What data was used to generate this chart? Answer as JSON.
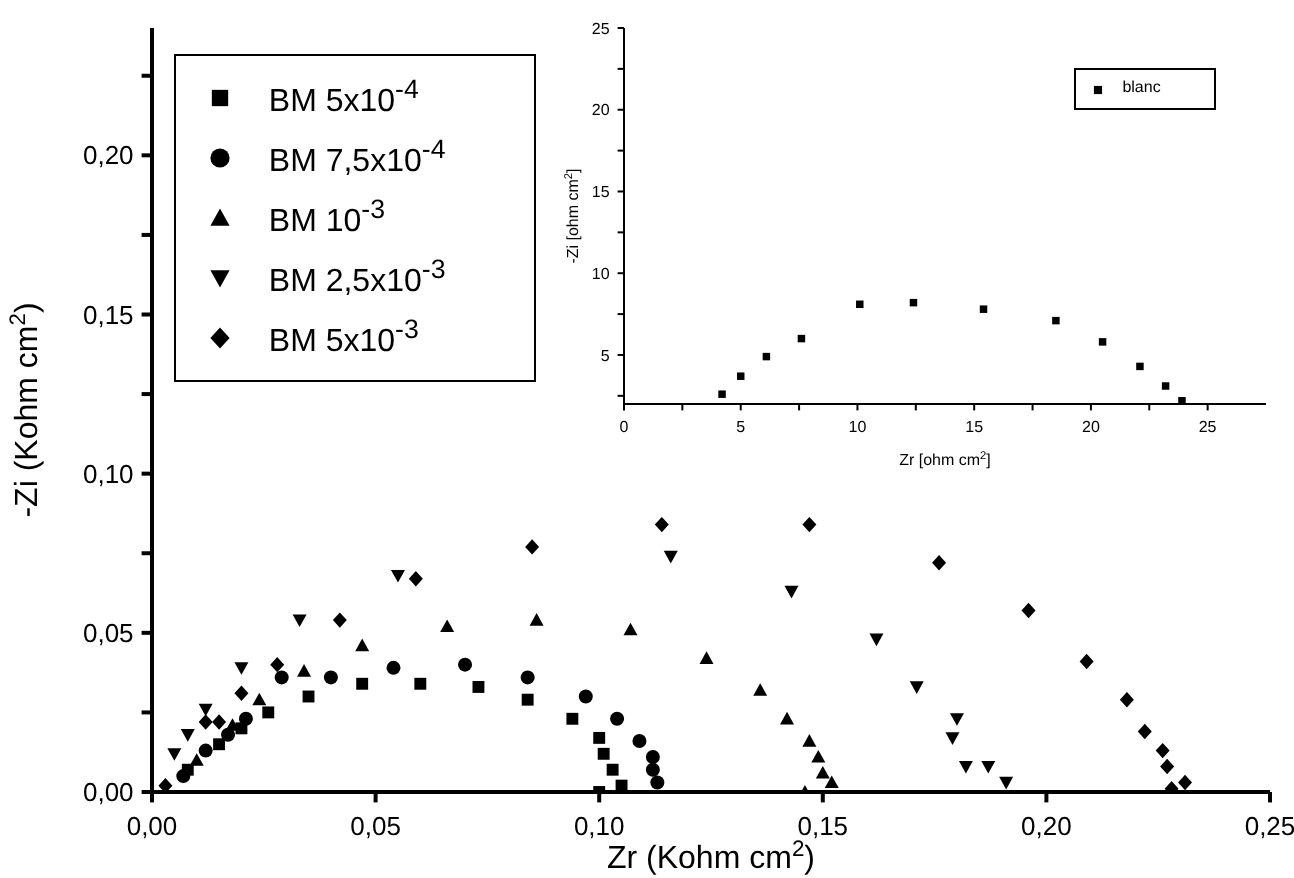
{
  "chart_data": [
    {
      "type": "scatter",
      "xlabel": "Zr (Kohm cm$^{2}$)",
      "ylabel": "-Zi (Kohm cm$^{2}$)",
      "xlim": [
        0,
        0.25
      ],
      "xticks": [
        {
          "value": 0,
          "label": "0,00"
        },
        {
          "value": 0.05,
          "label": "0,05"
        },
        {
          "value": 0.1,
          "label": "0,10"
        },
        {
          "value": 0.15,
          "label": "0,15"
        },
        {
          "value": 0.2,
          "label": "0,20"
        },
        {
          "value": 0.25,
          "label": "0,25"
        }
      ],
      "ylim": [
        0,
        0.24
      ],
      "yticks": [
        {
          "value": 0,
          "label": "0,00"
        },
        {
          "value": 0.025,
          "label": null
        },
        {
          "value": 0.05,
          "label": "0,05"
        },
        {
          "value": 0.075,
          "label": null
        },
        {
          "value": 0.1,
          "label": "0,10"
        },
        {
          "value": 0.125,
          "label": null
        },
        {
          "value": 0.15,
          "label": "0,15"
        },
        {
          "value": 0.175,
          "label": null
        },
        {
          "value": 0.2,
          "label": "0,20"
        },
        {
          "value": 0.225,
          "label": null
        }
      ],
      "legend": "top left",
      "series": [
        {
          "name": "BM 5x10$^{-4}$",
          "color": "#000000",
          "marker": "square",
          "x": [
            0.008,
            0.011,
            0.015,
            0.02,
            0.026,
            0.035,
            0.047,
            0.06,
            0.073,
            0.084,
            0.094,
            0.1,
            0.101,
            0.103,
            0.105,
            0.1
          ],
          "values": [
            0.007,
            null,
            0.015,
            0.02,
            0.025,
            0.03,
            0.034,
            0.034,
            0.033,
            0.029,
            0.023,
            0.017,
            0.012,
            0.007,
            0.002,
            0
          ]
        },
        {
          "name": "BM 7,5x10$^{-4}$",
          "color": "#000000",
          "marker": "circle",
          "x": [
            0.007,
            0.012,
            0.017,
            0.021,
            0.029,
            0.04,
            0.054,
            0.07,
            0.084,
            0.097,
            0.104,
            0.109,
            0.112,
            0.112,
            0.113
          ],
          "values": [
            0.005,
            0.013,
            0.018,
            0.023,
            0.036,
            0.036,
            0.039,
            0.04,
            0.036,
            0.03,
            0.023,
            0.016,
            0.011,
            0.007,
            0.003
          ]
        },
        {
          "name": "BM 10$^{-3}$",
          "color": "#000000",
          "marker": "triangle",
          "x": [
            0.01,
            0.018,
            0.024,
            0.034,
            0.047,
            0.066,
            0.086,
            0.107,
            0.124,
            0.136,
            0.142,
            0.147,
            0.149,
            0.15,
            0.152,
            0.146
          ],
          "values": [
            0.01,
            0.021,
            0.029,
            0.038,
            0.046,
            0.052,
            0.054,
            0.051,
            0.042,
            0.032,
            0.023,
            0.016,
            0.011,
            0.006,
            0.003,
            0
          ]
        },
        {
          "name": "BM 2,5x10$^{-3}$",
          "color": "#000000",
          "marker": "triangle_down",
          "x": [
            0.005,
            0.008,
            0.012,
            0.02,
            0.033,
            0.055,
            0.116,
            0.143,
            0.162,
            0.171,
            0.18,
            0.179,
            0.182,
            0.187,
            0.191
          ],
          "values": [
            0.012,
            0.018,
            0.026,
            0.039,
            0.054,
            0.068,
            0.074,
            0.063,
            0.048,
            0.033,
            0.023,
            0.017,
            0.008,
            0.008,
            0.003
          ]
        },
        {
          "name": "BM 5x10$^{-3}$",
          "color": "#000000",
          "marker": "diamond",
          "x": [
            0.003,
            0.012,
            0.015,
            0.02,
            0.028,
            0.042,
            0.059,
            0.085,
            0.114,
            0.147,
            0.176,
            0.196,
            0.209,
            0.218,
            0.222,
            0.226,
            0.227,
            0.228,
            0.231
          ],
          "values": [
            0.002,
            0.022,
            0.022,
            0.031,
            0.04,
            0.054,
            0.067,
            0.077,
            0.084,
            0.084,
            0.072,
            0.057,
            0.041,
            0.029,
            0.019,
            0.013,
            0.008,
            0.001,
            0.003
          ]
        }
      ]
    },
    {
      "type": "scatter",
      "xlabel": "Zr [ohm cm$^{2}$]",
      "ylabel": "-Zi [ohm cm$^{2}$]",
      "xlim": [
        0,
        27.5
      ],
      "xticks": [
        0,
        {
          "value": 2.5,
          "label": null
        },
        5,
        {
          "value": 7.5,
          "label": null
        },
        10,
        {
          "value": 12.5,
          "label": null
        },
        15,
        {
          "value": 17.5,
          "label": null
        },
        20,
        {
          "value": 22.5,
          "label": null
        },
        25
      ],
      "ylim": [
        2,
        25
      ],
      "yticks": [
        {
          "value": 2.5,
          "label": null
        },
        5,
        {
          "value": 7.5,
          "label": null
        },
        10,
        {
          "value": 12.5,
          "label": null
        },
        15,
        {
          "value": 17.5,
          "label": null
        },
        20,
        {
          "value": 22.5,
          "label": null
        },
        25
      ],
      "legend": "top right",
      "series": [
        {
          "name": "blanc",
          "color": "#000000",
          "marker": "square",
          "x": [
            4.2,
            5,
            6.1,
            7.6,
            10.1,
            12.4,
            15.4,
            18.5,
            20.5,
            22.1,
            23.2,
            23.9
          ],
          "values": [
            2.6,
            3.7,
            4.9,
            6,
            8.1,
            8.2,
            7.8,
            7.1,
            5.8,
            4.3,
            3.1,
            2.2
          ]
        }
      ]
    }
  ]
}
